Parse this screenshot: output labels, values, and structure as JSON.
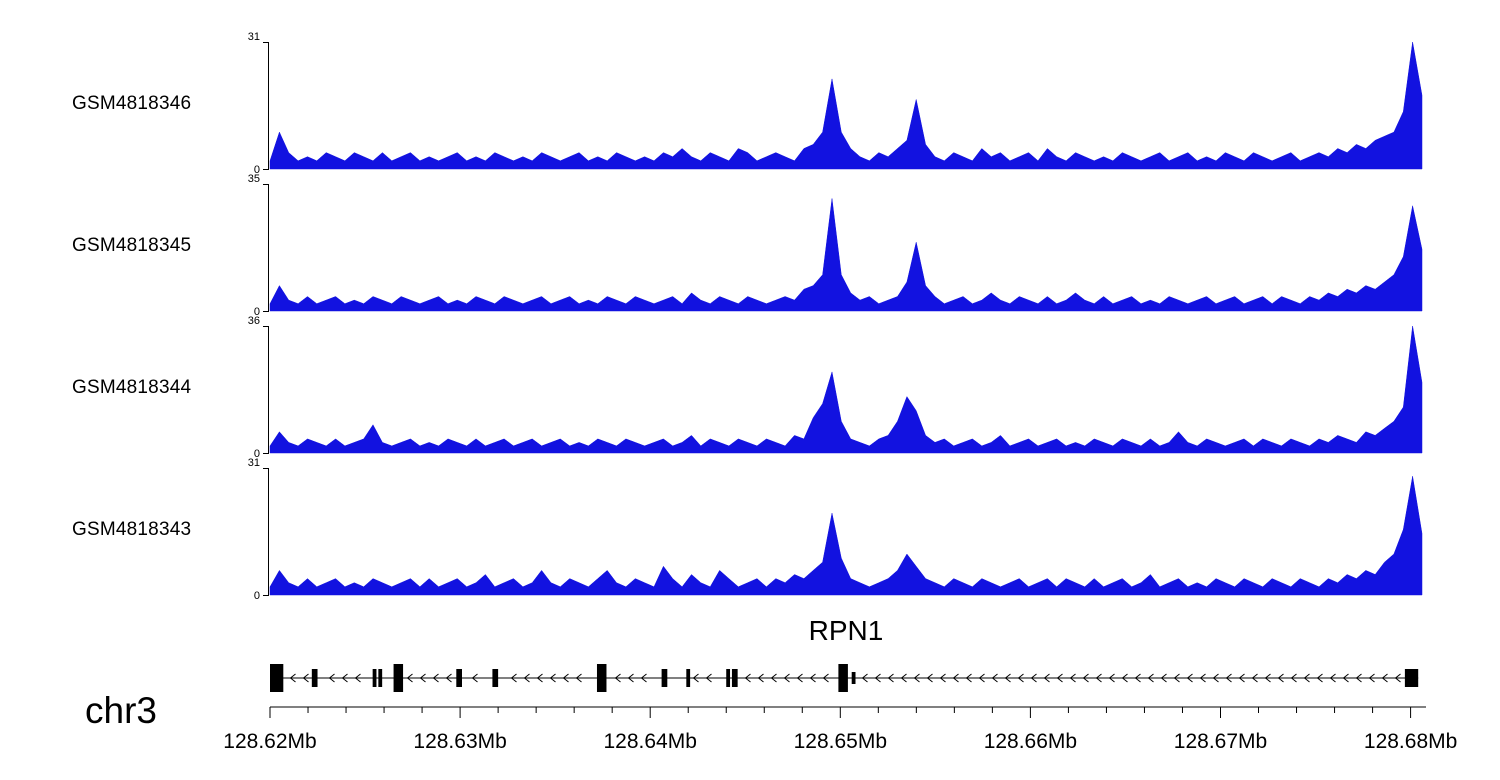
{
  "chart_data": {
    "type": "area",
    "title": "",
    "x_unit": "Mb",
    "chromosome": "chr3",
    "xlim": [
      128.62,
      128.6806
    ],
    "y_zero_label": "0",
    "colors": {
      "signal": "#1212e0",
      "axis": "#000000",
      "gene": "#000000"
    },
    "tracks": [
      {
        "name": "GSM4818346",
        "ymax": 31,
        "values": [
          2,
          9,
          4,
          2,
          3,
          2,
          4,
          3,
          2,
          4,
          3,
          2,
          4,
          2,
          3,
          4,
          2,
          3,
          2,
          3,
          4,
          2,
          3,
          2,
          4,
          3,
          2,
          3,
          2,
          4,
          3,
          2,
          3,
          4,
          2,
          3,
          2,
          4,
          3,
          2,
          3,
          2,
          4,
          3,
          5,
          3,
          2,
          4,
          3,
          2,
          5,
          4,
          2,
          3,
          4,
          3,
          2,
          5,
          6,
          9,
          22,
          9,
          5,
          3,
          2,
          4,
          3,
          5,
          7,
          17,
          6,
          3,
          2,
          4,
          3,
          2,
          5,
          3,
          4,
          2,
          3,
          4,
          2,
          5,
          3,
          2,
          4,
          3,
          2,
          3,
          2,
          4,
          3,
          2,
          3,
          4,
          2,
          3,
          4,
          2,
          3,
          2,
          4,
          3,
          2,
          4,
          3,
          2,
          3,
          4,
          2,
          3,
          4,
          3,
          5,
          4,
          6,
          5,
          7,
          8,
          9,
          14,
          31,
          18
        ]
      },
      {
        "name": "GSM4818345",
        "ymax": 35,
        "values": [
          2,
          7,
          3,
          2,
          4,
          2,
          3,
          4,
          2,
          3,
          2,
          4,
          3,
          2,
          4,
          3,
          2,
          3,
          4,
          2,
          3,
          2,
          4,
          3,
          2,
          4,
          3,
          2,
          3,
          4,
          2,
          3,
          4,
          2,
          3,
          2,
          4,
          3,
          2,
          4,
          3,
          2,
          3,
          4,
          2,
          5,
          3,
          2,
          4,
          3,
          2,
          4,
          3,
          2,
          3,
          4,
          3,
          6,
          7,
          10,
          31,
          10,
          5,
          3,
          4,
          2,
          3,
          4,
          8,
          19,
          7,
          4,
          2,
          3,
          4,
          2,
          3,
          5,
          3,
          2,
          4,
          3,
          2,
          4,
          2,
          3,
          5,
          3,
          2,
          4,
          2,
          3,
          4,
          2,
          3,
          2,
          4,
          3,
          2,
          3,
          4,
          2,
          3,
          4,
          2,
          3,
          4,
          2,
          4,
          3,
          2,
          4,
          3,
          5,
          4,
          6,
          5,
          7,
          6,
          8,
          10,
          15,
          29,
          17
        ]
      },
      {
        "name": "GSM4818344",
        "ymax": 36,
        "values": [
          2,
          6,
          3,
          2,
          4,
          3,
          2,
          4,
          2,
          3,
          4,
          8,
          3,
          2,
          3,
          4,
          2,
          3,
          2,
          4,
          3,
          2,
          4,
          2,
          3,
          4,
          2,
          3,
          4,
          2,
          3,
          4,
          2,
          3,
          2,
          4,
          3,
          2,
          4,
          3,
          2,
          3,
          4,
          2,
          3,
          5,
          2,
          4,
          3,
          2,
          4,
          3,
          2,
          4,
          3,
          2,
          5,
          4,
          10,
          14,
          23,
          9,
          4,
          3,
          2,
          4,
          5,
          9,
          16,
          12,
          5,
          3,
          4,
          2,
          3,
          4,
          2,
          3,
          5,
          2,
          3,
          4,
          2,
          3,
          4,
          2,
          3,
          2,
          4,
          3,
          2,
          4,
          3,
          2,
          4,
          2,
          3,
          6,
          3,
          2,
          4,
          3,
          2,
          3,
          4,
          2,
          4,
          3,
          2,
          4,
          3,
          2,
          4,
          3,
          5,
          4,
          3,
          6,
          5,
          7,
          9,
          13,
          36,
          20
        ]
      },
      {
        "name": "GSM4818343",
        "ymax": 31,
        "values": [
          2,
          6,
          3,
          2,
          4,
          2,
          3,
          4,
          2,
          3,
          2,
          4,
          3,
          2,
          3,
          4,
          2,
          4,
          2,
          3,
          4,
          2,
          3,
          5,
          2,
          3,
          4,
          2,
          3,
          6,
          3,
          2,
          4,
          3,
          2,
          4,
          6,
          3,
          2,
          4,
          3,
          2,
          7,
          4,
          2,
          5,
          3,
          2,
          6,
          4,
          2,
          3,
          4,
          2,
          4,
          3,
          5,
          4,
          6,
          8,
          20,
          9,
          4,
          3,
          2,
          3,
          4,
          6,
          10,
          7,
          4,
          3,
          2,
          4,
          3,
          2,
          4,
          3,
          2,
          3,
          4,
          2,
          3,
          4,
          2,
          4,
          3,
          2,
          4,
          2,
          3,
          4,
          2,
          3,
          5,
          2,
          3,
          4,
          2,
          3,
          2,
          4,
          3,
          2,
          4,
          3,
          2,
          4,
          3,
          2,
          4,
          3,
          2,
          4,
          3,
          5,
          4,
          6,
          5,
          8,
          10,
          16,
          29,
          15
        ]
      }
    ]
  },
  "gene": {
    "name": "RPN1",
    "strand": "minus",
    "span": [
      128.62,
      128.6804
    ],
    "exons": [
      {
        "start": 128.62,
        "end": 128.6207,
        "h": "tall"
      },
      {
        "start": 128.6222,
        "end": 128.6225,
        "h": "med"
      },
      {
        "start": 128.6254,
        "end": 128.6256,
        "h": "med"
      },
      {
        "start": 128.6257,
        "end": 128.6259,
        "h": "med"
      },
      {
        "start": 128.6265,
        "end": 128.627,
        "h": "tall"
      },
      {
        "start": 128.6298,
        "end": 128.6301,
        "h": "med"
      },
      {
        "start": 128.6317,
        "end": 128.632,
        "h": "med"
      },
      {
        "start": 128.6372,
        "end": 128.6377,
        "h": "tall"
      },
      {
        "start": 128.6406,
        "end": 128.6409,
        "h": "med"
      },
      {
        "start": 128.6419,
        "end": 128.6421,
        "h": "med"
      },
      {
        "start": 128.644,
        "end": 128.6442,
        "h": "med"
      },
      {
        "start": 128.6443,
        "end": 128.6446,
        "h": "med"
      },
      {
        "start": 128.6499,
        "end": 128.6504,
        "h": "tall"
      },
      {
        "start": 128.6506,
        "end": 128.6508,
        "h": "short"
      },
      {
        "start": 128.6797,
        "end": 128.6804,
        "h": "med"
      }
    ]
  },
  "axis": {
    "chrom": "chr3",
    "minor_step": 0.002,
    "ticks": [
      {
        "pos": 128.62,
        "label": "128.62Mb"
      },
      {
        "pos": 128.63,
        "label": "128.63Mb"
      },
      {
        "pos": 128.64,
        "label": "128.64Mb"
      },
      {
        "pos": 128.65,
        "label": "128.65Mb"
      },
      {
        "pos": 128.66,
        "label": "128.66Mb"
      },
      {
        "pos": 128.67,
        "label": "128.67Mb"
      },
      {
        "pos": 128.68,
        "label": "128.68Mb"
      }
    ]
  }
}
